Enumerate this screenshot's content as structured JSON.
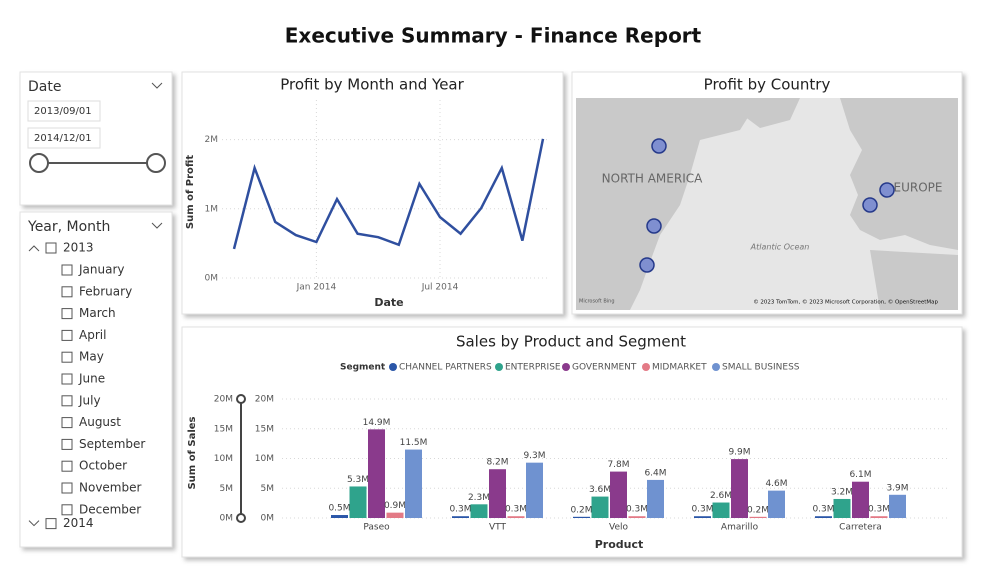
{
  "title": "Executive Summary - Finance Report",
  "date_slicer": {
    "label": "Date",
    "start": "2013/09/01",
    "end": "2014/12/01"
  },
  "month_slicer": {
    "label": "Year, Month",
    "years": [
      {
        "year": "2013",
        "months": [
          "January",
          "February",
          "March",
          "April",
          "May",
          "June",
          "July",
          "August",
          "September",
          "October",
          "November",
          "December"
        ]
      },
      {
        "year": "2014"
      }
    ]
  },
  "chart_data": [
    {
      "type": "line",
      "title": "Profit by Month and Year",
      "x_label": "Date",
      "y_label": "Sum of Profit",
      "x": [
        "2013-09",
        "2013-10",
        "2013-11",
        "2013-12",
        "2014-01",
        "2014-02",
        "2014-03",
        "2014-04",
        "2014-05",
        "2014-06",
        "2014-07",
        "2014-08",
        "2014-09",
        "2014-10",
        "2014-11",
        "2014-12"
      ],
      "values": [
        420000,
        1590000,
        810000,
        620000,
        520000,
        1140000,
        640000,
        590000,
        480000,
        1360000,
        880000,
        640000,
        1010000,
        1590000,
        540000,
        2010000
      ],
      "color": "#2f4f9f",
      "xticks": [
        {
          "value": "2014-01",
          "label": "Jan 2014"
        },
        {
          "value": "2014-07",
          "label": "Jul 2014"
        }
      ],
      "ylim": [
        0,
        2500000
      ],
      "yticks": [
        {
          "value": 0,
          "label": "0M"
        },
        {
          "value": 1000000,
          "label": "1M"
        },
        {
          "value": 2000000,
          "label": "2M"
        }
      ],
      "grid": true
    },
    {
      "type": "map",
      "title": "Profit by Country",
      "labels": [
        "NORTH AMERICA",
        "EUROPE",
        "Atlantic Ocean"
      ],
      "attribution": "© 2023 TomTom, © 2023 Microsoft Corporation, © OpenStreetMap",
      "provider": "Microsoft Bing"
    },
    {
      "type": "bar",
      "title": "Sales by Product and Segment",
      "x_label": "Product",
      "y_label": "Sum of Sales",
      "legend_title": "Segment",
      "categories": [
        "Paseo",
        "VTT",
        "Velo",
        "Amarillo",
        "Carretera"
      ],
      "series": [
        {
          "name": "CHANNEL PARTNERS",
          "color": "#2a56a8",
          "values": [
            500000,
            300000,
            200000,
            300000,
            300000
          ],
          "value_labels": [
            "0.5M",
            "0.3M",
            "0.2M",
            "0.3M",
            "0.3M"
          ]
        },
        {
          "name": "ENTERPRISE",
          "color": "#2fa38c",
          "values": [
            5300000,
            2300000,
            3600000,
            2600000,
            3200000
          ],
          "value_labels": [
            "5.3M",
            "2.3M",
            "3.6M",
            "2.6M",
            "3.2M"
          ]
        },
        {
          "name": "GOVERNMENT",
          "color": "#8a3a8c",
          "values": [
            14900000,
            8200000,
            7800000,
            9900000,
            6100000
          ],
          "value_labels": [
            "14.9M",
            "8.2M",
            "7.8M",
            "9.9M",
            "6.1M"
          ]
        },
        {
          "name": "MIDMARKET",
          "color": "#e37a86",
          "values": [
            900000,
            300000,
            300000,
            200000,
            300000
          ],
          "value_labels": [
            "0.9M",
            "0.3M",
            "0.3M",
            "0.2M",
            "0.3M"
          ]
        },
        {
          "name": "SMALL BUSINESS",
          "color": "#6f92d0",
          "values": [
            11500000,
            9300000,
            6400000,
            4600000,
            3900000
          ],
          "value_labels": [
            "11.5M",
            "9.3M",
            "6.4M",
            "4.6M",
            "3.9M"
          ]
        }
      ],
      "ylim": [
        0,
        20000000
      ],
      "yticks": [
        {
          "value": 0,
          "label": "0M"
        },
        {
          "value": 5000000,
          "label": "5M"
        },
        {
          "value": 10000000,
          "label": "10M"
        },
        {
          "value": 15000000,
          "label": "15M"
        },
        {
          "value": 20000000,
          "label": "20M"
        }
      ],
      "grid": true
    }
  ]
}
